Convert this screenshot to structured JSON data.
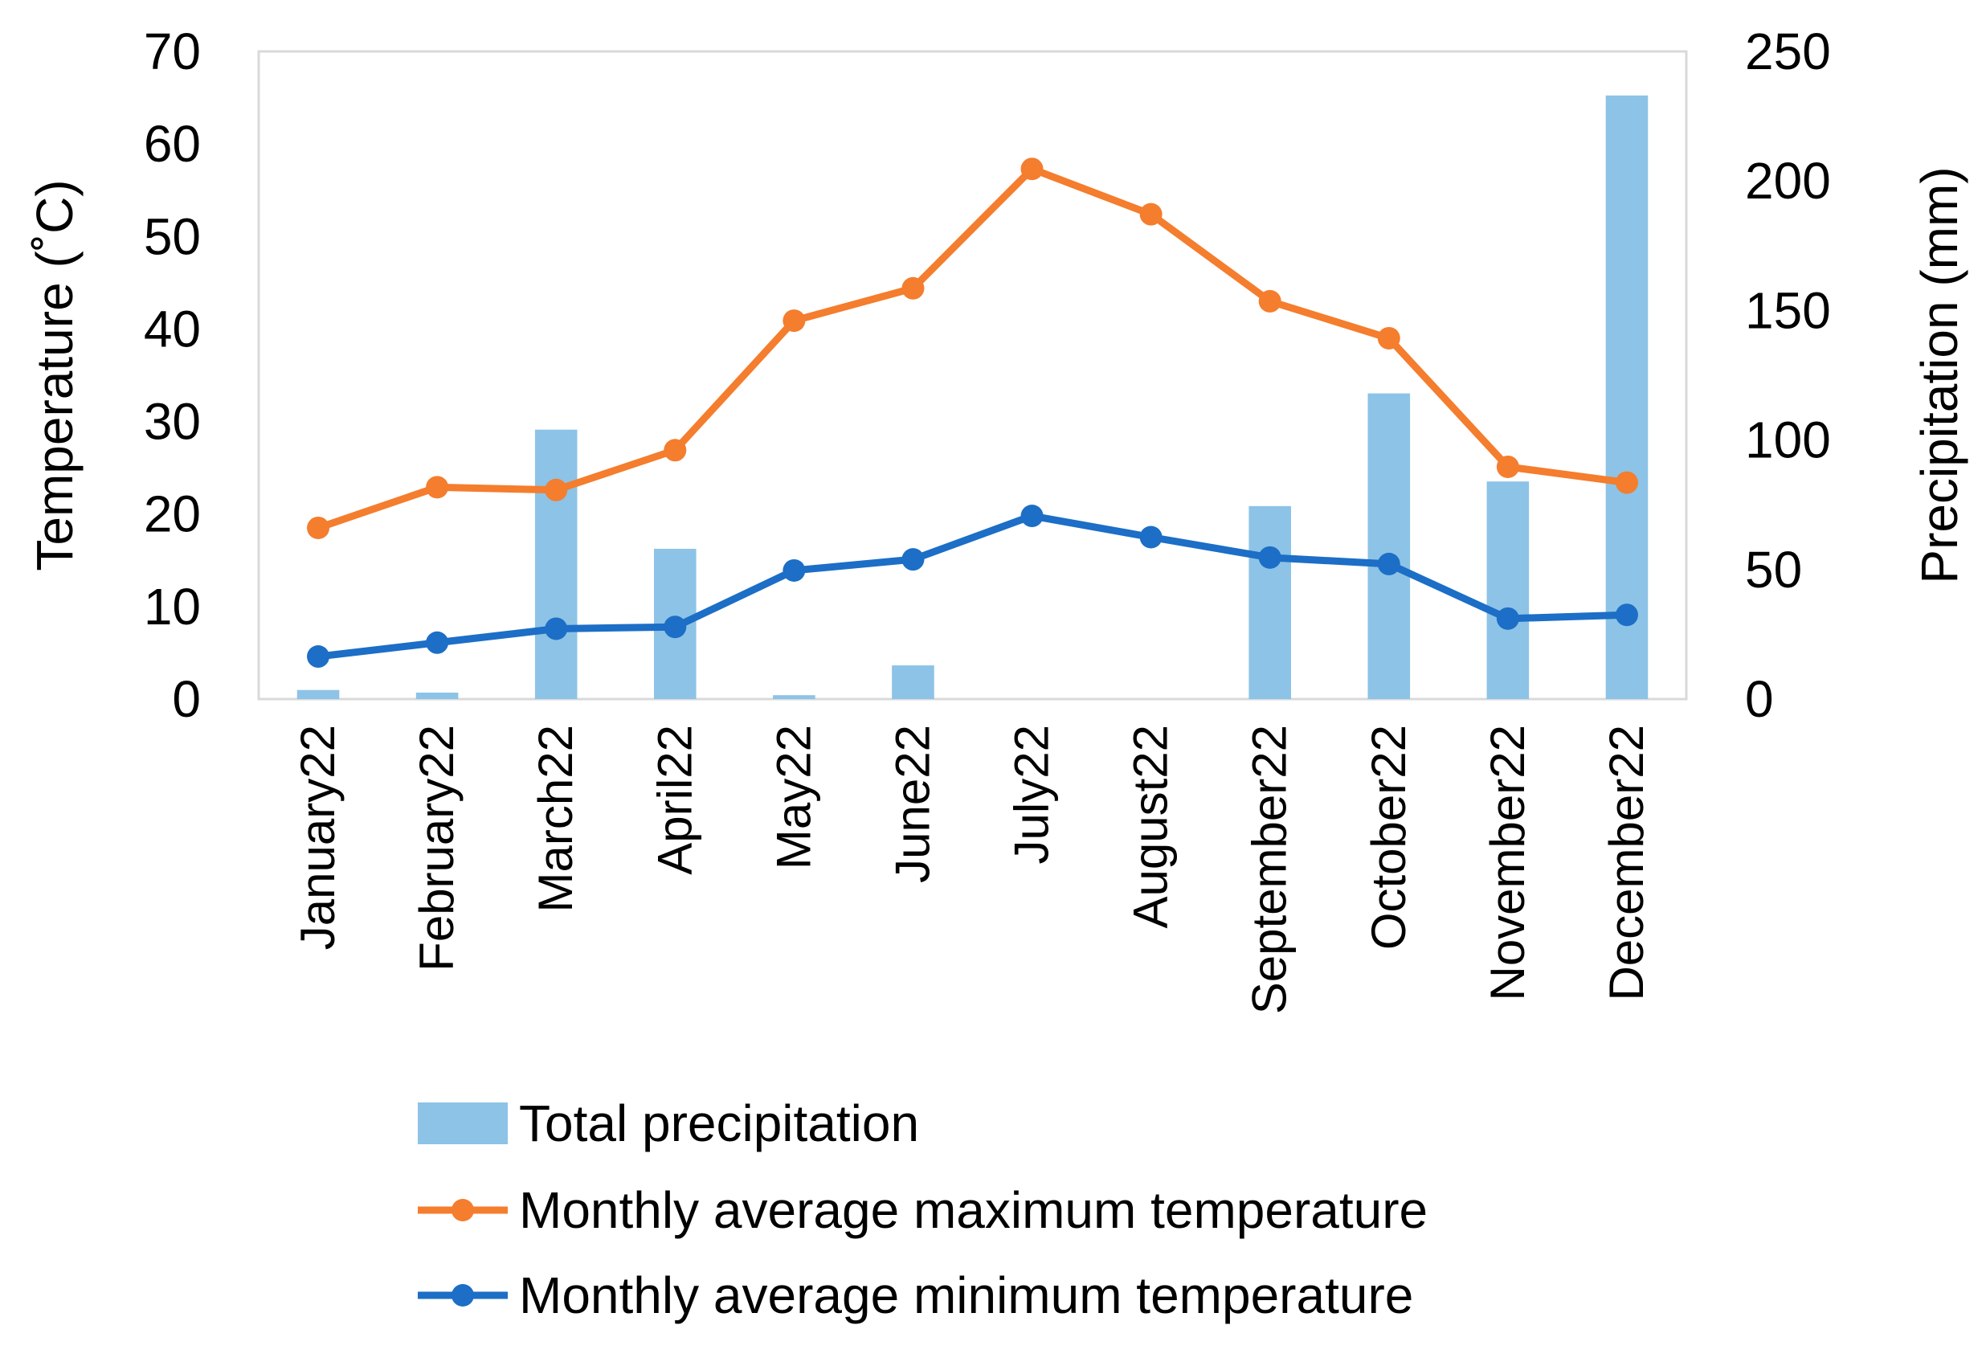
{
  "chart_data": {
    "type": "bar",
    "title": "",
    "categories": [
      "January22",
      "February22",
      "March22",
      "April22",
      "May22",
      "June22",
      "July22",
      "August22",
      "September22",
      "October22",
      "November22",
      "December22"
    ],
    "series": [
      {
        "name": "Total precipitation",
        "type": "bar",
        "axis": "right",
        "color": "#8DC3E6",
        "values": [
          3.5,
          2.5,
          104,
          58,
          1.5,
          13,
          0,
          0,
          74.5,
          118,
          84,
          233
        ]
      },
      {
        "name": "Monthly average maximum temperature",
        "type": "line",
        "axis": "left",
        "color": "#F47D2E",
        "values": [
          18.5,
          22.9,
          22.6,
          26.9,
          40.9,
          44.4,
          57.3,
          52.4,
          43.0,
          39.0,
          25.1,
          23.4
        ]
      },
      {
        "name": "Monthly average minimum temperature",
        "type": "line",
        "axis": "left",
        "color": "#1C6EC6",
        "values": [
          4.6,
          6.1,
          7.6,
          7.8,
          13.9,
          15.1,
          19.8,
          17.5,
          15.3,
          14.6,
          8.7,
          9.1
        ]
      }
    ],
    "left_axis": {
      "label": "Temperature (˚C)",
      "ylim": [
        0,
        70
      ],
      "ticks": [
        "0",
        "10",
        "20",
        "30",
        "40",
        "50",
        "60",
        "70"
      ]
    },
    "right_axis": {
      "label": "Precipitation (mm)",
      "ylim": [
        0,
        250
      ],
      "ticks": [
        "0",
        "50",
        "100",
        "150",
        "200",
        "250"
      ]
    },
    "xlabel": "",
    "grid": false,
    "legend_position": "bottom"
  }
}
